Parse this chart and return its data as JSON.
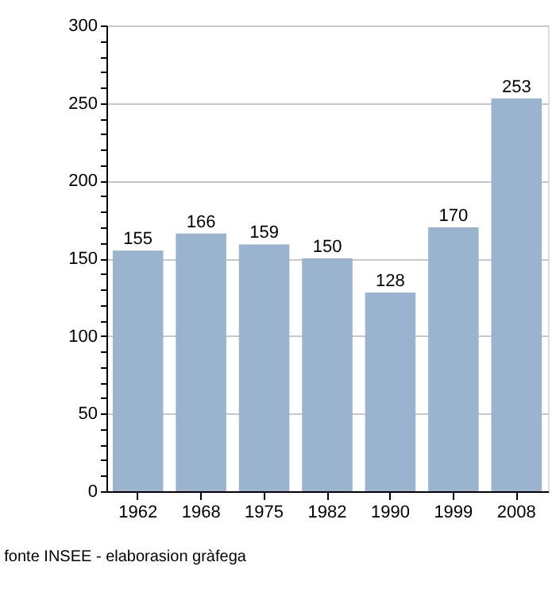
{
  "chart_data": {
    "type": "bar",
    "categories": [
      "1962",
      "1968",
      "1975",
      "1982",
      "1990",
      "1999",
      "2008"
    ],
    "values": [
      155,
      166,
      159,
      150,
      128,
      170,
      253
    ],
    "color": "#9ab3cf",
    "ylim": [
      0,
      300
    ],
    "yticks": [
      0,
      {
        "value": 10,
        "label": null
      },
      {
        "value": 20,
        "label": null
      },
      {
        "value": 30,
        "label": null
      },
      {
        "value": 40,
        "label": null
      },
      50,
      {
        "value": 60,
        "label": null
      },
      {
        "value": 70,
        "label": null
      },
      {
        "value": 80,
        "label": null
      },
      {
        "value": 90,
        "label": null
      },
      100,
      {
        "value": 110,
        "label": null
      },
      {
        "value": 120,
        "label": null
      },
      {
        "value": 130,
        "label": null
      },
      {
        "value": 140,
        "label": null
      },
      150,
      {
        "value": 160,
        "label": null
      },
      {
        "value": 170,
        "label": null
      },
      {
        "value": 180,
        "label": null
      },
      {
        "value": 190,
        "label": null
      },
      200,
      {
        "value": 210,
        "label": null
      },
      {
        "value": 220,
        "label": null
      },
      {
        "value": 230,
        "label": null
      },
      {
        "value": 240,
        "label": null
      },
      250,
      {
        "value": 260,
        "label": null
      },
      {
        "value": 270,
        "label": null
      },
      {
        "value": 280,
        "label": null
      },
      {
        "value": 290,
        "label": null
      },
      300
    ],
    "grid": "y",
    "data_labels": true,
    "annotations": [
      "fonte INSEE - elaborasion gràfega"
    ]
  }
}
